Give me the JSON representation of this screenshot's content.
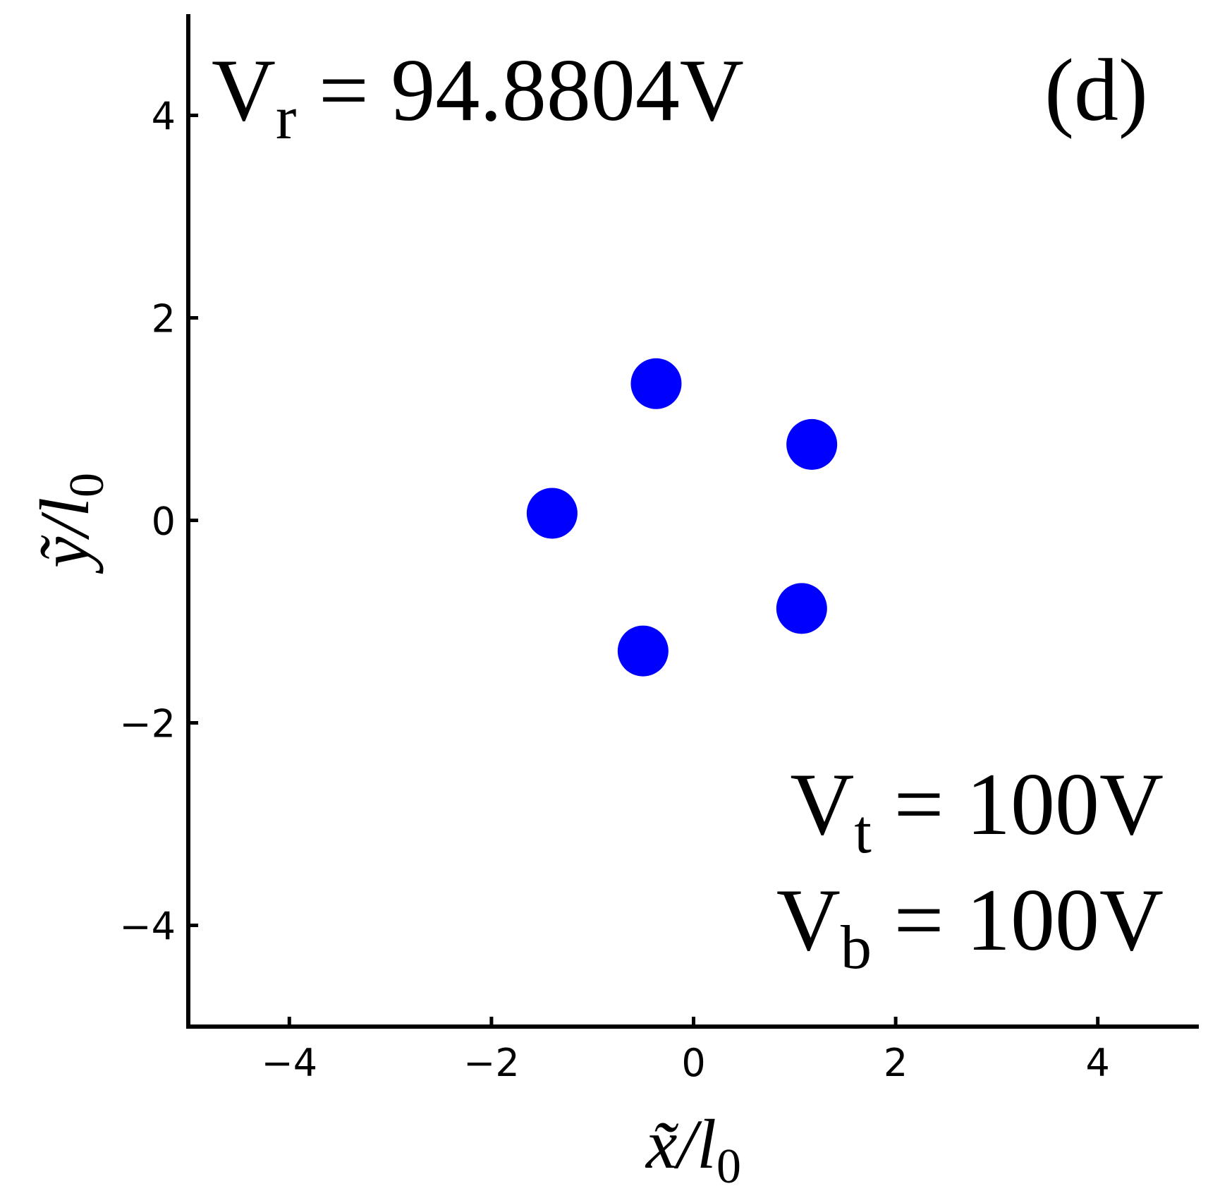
{
  "chart_data": {
    "type": "scatter",
    "x_label": {
      "main": "x̃/l",
      "sub": "0"
    },
    "y_label": {
      "main": "ỹ/l",
      "sub": "0"
    },
    "annotations": [
      {
        "main": "V",
        "sub": "r",
        "rest": " = 94.8804V"
      },
      {
        "main": "(d)"
      },
      {
        "main": "V",
        "sub": "t",
        "rest": " = 100V"
      },
      {
        "main": "V",
        "sub": "b",
        "rest": " = 100V"
      }
    ],
    "series": [
      {
        "color": "#0000ff",
        "x": [
          -1.4,
          -0.37,
          1.17,
          1.07,
          -0.5
        ],
        "values": [
          0.07,
          1.35,
          0.75,
          -0.87,
          -1.29
        ]
      }
    ],
    "xlim": [
      -5,
      5
    ],
    "ylim": [
      -5,
      5
    ],
    "xticks": [
      {
        "value": -4,
        "label": "−4"
      },
      {
        "value": -2,
        "label": "−2"
      },
      0,
      2,
      4
    ],
    "yticks": [
      {
        "value": -4,
        "label": "−4"
      },
      {
        "value": -2,
        "label": "−2"
      },
      0,
      2,
      4
    ]
  }
}
